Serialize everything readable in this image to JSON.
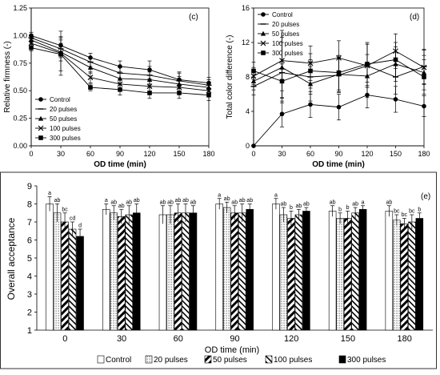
{
  "chart_data": [
    {
      "type": "line",
      "panel_label": "(c)",
      "ylabel": "Relative firmness (-)",
      "xlabel": "OD time (min)",
      "x": [
        0,
        30,
        60,
        90,
        120,
        150,
        180
      ],
      "xticks": [
        "0",
        "30",
        "60",
        "90",
        "120",
        "150",
        "180"
      ],
      "ylim": [
        0,
        1.25
      ],
      "yticks": [
        "0.00",
        "0.25",
        "0.50",
        "0.75",
        "1.00",
        "1.25"
      ],
      "legend_position": "bottom-left",
      "series": [
        {
          "name": "Control",
          "marker": "circle",
          "values": [
            1.0,
            0.91,
            0.8,
            0.72,
            0.69,
            0.6,
            0.57
          ],
          "errors": [
            0.03,
            0.08,
            0.04,
            0.05,
            0.08,
            0.07,
            0.05
          ]
        },
        {
          "name": "20 pulses",
          "marker": "dash",
          "values": [
            0.98,
            0.88,
            0.76,
            0.66,
            0.64,
            0.59,
            0.55
          ],
          "errors": [
            0.03,
            0.08,
            0.04,
            0.05,
            0.08,
            0.07,
            0.05
          ]
        },
        {
          "name": "50 pulses",
          "marker": "triangle",
          "values": [
            0.96,
            0.85,
            0.71,
            0.61,
            0.6,
            0.56,
            0.53
          ],
          "errors": [
            0.03,
            0.08,
            0.05,
            0.05,
            0.07,
            0.07,
            0.05
          ]
        },
        {
          "name": "100 pulses",
          "marker": "x",
          "values": [
            0.93,
            0.84,
            0.62,
            0.56,
            0.54,
            0.53,
            0.5
          ],
          "errors": [
            0.03,
            0.2,
            0.05,
            0.05,
            0.06,
            0.06,
            0.05
          ]
        },
        {
          "name": "300 pulses",
          "marker": "square",
          "values": [
            0.89,
            0.83,
            0.53,
            0.51,
            0.48,
            0.48,
            0.46
          ],
          "errors": [
            0.03,
            0.15,
            0.03,
            0.05,
            0.05,
            0.05,
            0.05
          ]
        }
      ]
    },
    {
      "type": "line",
      "panel_label": "(d)",
      "ylabel": "Total color difference (-)",
      "xlabel": "OD time (min)",
      "x": [
        0,
        30,
        60,
        90,
        120,
        150,
        180
      ],
      "xticks": [
        "0",
        "30",
        "60",
        "90",
        "120",
        "150",
        "180"
      ],
      "ylim": [
        0,
        16
      ],
      "yticks": [
        "0",
        "4",
        "8",
        "12",
        "16"
      ],
      "legend_position": "top-left",
      "series": [
        {
          "name": "Control",
          "marker": "circle",
          "values": [
            0.0,
            3.7,
            4.8,
            4.5,
            5.9,
            5.4,
            4.6
          ],
          "errors": [
            0.0,
            1.5,
            1.5,
            1.5,
            1.5,
            1.5,
            1.2
          ]
        },
        {
          "name": "20 pulses",
          "marker": "dash",
          "values": [
            6.9,
            8.5,
            8.0,
            8.2,
            9.3,
            8.0,
            9.2
          ],
          "errors": [
            1.0,
            3.5,
            2.0,
            2.0,
            2.5,
            2.0,
            2.0
          ]
        },
        {
          "name": "50 pulses",
          "marker": "triangle",
          "values": [
            7.5,
            9.1,
            7.2,
            8.3,
            8.1,
            9.5,
            8.5
          ],
          "errors": [
            1.0,
            3.5,
            2.0,
            2.0,
            2.5,
            2.0,
            2.0
          ]
        },
        {
          "name": "100 pulses",
          "marker": "x",
          "values": [
            8.1,
            9.9,
            9.6,
            10.2,
            9.3,
            11.0,
            9.1
          ],
          "errors": [
            1.0,
            3.5,
            2.0,
            2.0,
            2.5,
            2.0,
            2.0
          ]
        },
        {
          "name": "300 pulses",
          "marker": "square",
          "values": [
            8.7,
            7.5,
            8.7,
            8.5,
            9.5,
            10.0,
            8.0
          ],
          "errors": [
            1.0,
            2.0,
            2.0,
            2.0,
            2.5,
            2.0,
            2.0
          ]
        }
      ]
    },
    {
      "type": "bar",
      "panel_label": "(e)",
      "ylabel": "Overall acceptance",
      "xlabel": "OD time (min)",
      "categories": [
        "0",
        "30",
        "60",
        "90",
        "120",
        "150",
        "180"
      ],
      "ylim": [
        1,
        9
      ],
      "yticks": [
        "1",
        "2",
        "3",
        "4",
        "5",
        "6",
        "7",
        "8",
        "9"
      ],
      "legend_position": "bottom",
      "series": [
        {
          "name": "Control",
          "pattern": "white",
          "values": [
            8.0,
            7.7,
            7.4,
            8.0,
            8.0,
            7.6,
            7.6
          ],
          "errors": [
            0.4,
            0.3,
            0.5,
            0.3,
            0.3,
            0.3,
            0.3
          ],
          "letters": [
            "a",
            "a",
            "ab",
            "a",
            "a",
            "ab",
            "ab"
          ]
        },
        {
          "name": "20 pulses",
          "pattern": "dots",
          "values": [
            7.5,
            7.5,
            7.4,
            7.8,
            7.4,
            7.2,
            7.1
          ],
          "errors": [
            0.5,
            0.4,
            0.5,
            0.3,
            0.4,
            0.3,
            0.3
          ],
          "letters": [
            "ab",
            "ab",
            "ab",
            "ab",
            "ab",
            "b",
            "bc"
          ]
        },
        {
          "name": "50 pulses",
          "pattern": "diagonal-thick",
          "values": [
            7.0,
            7.3,
            7.5,
            7.5,
            7.2,
            7.2,
            6.9
          ],
          "errors": [
            0.5,
            0.4,
            0.5,
            0.4,
            0.4,
            0.4,
            0.3
          ],
          "letters": [
            "bc",
            "ab",
            "ab",
            "ab",
            "b",
            "b",
            "bc"
          ]
        },
        {
          "name": "100 pulses",
          "pattern": "diagonal-thin",
          "values": [
            6.6,
            7.4,
            7.5,
            7.5,
            7.4,
            7.5,
            7.0
          ],
          "errors": [
            0.4,
            0.5,
            0.5,
            0.5,
            0.3,
            0.3,
            0.4
          ],
          "letters": [
            "cd",
            "ab",
            "ab",
            "ab",
            "ab",
            "ab",
            "bc"
          ]
        },
        {
          "name": "300 pulses",
          "pattern": "black",
          "values": [
            6.2,
            7.5,
            7.5,
            7.7,
            7.6,
            7.7,
            7.2
          ],
          "errors": [
            0.4,
            0.5,
            0.4,
            0.3,
            0.2,
            0.2,
            0.3
          ],
          "letters": [
            "d",
            "ab",
            "ab",
            "ab",
            "ab",
            "a",
            "b"
          ]
        }
      ]
    }
  ]
}
